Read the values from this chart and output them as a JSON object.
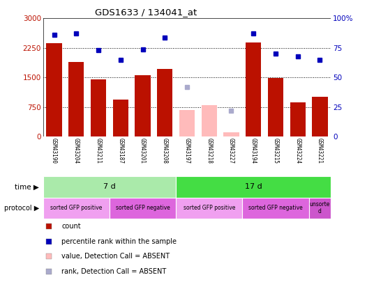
{
  "title": "GDS1633 / 134041_at",
  "samples": [
    "GSM43190",
    "GSM43204",
    "GSM43211",
    "GSM43187",
    "GSM43201",
    "GSM43208",
    "GSM43197",
    "GSM43218",
    "GSM43227",
    "GSM43194",
    "GSM43215",
    "GSM43224",
    "GSM43221"
  ],
  "counts": [
    2370,
    1900,
    1450,
    950,
    1560,
    1720,
    null,
    null,
    null,
    2380,
    1490,
    870,
    1020
  ],
  "counts_absent": [
    null,
    null,
    null,
    null,
    null,
    null,
    670,
    800,
    120,
    null,
    null,
    null,
    null
  ],
  "percentile_ranks": [
    86,
    87,
    73,
    65,
    74,
    84,
    null,
    null,
    null,
    87,
    70,
    68,
    65
  ],
  "percentile_ranks_absent": [
    null,
    null,
    null,
    null,
    null,
    null,
    42,
    null,
    22,
    null,
    null,
    null,
    null
  ],
  "ylim_left": [
    0,
    3000
  ],
  "ylim_right": [
    0,
    100
  ],
  "yticks_left": [
    0,
    750,
    1500,
    2250,
    3000
  ],
  "yticks_right": [
    0,
    25,
    50,
    75,
    100
  ],
  "ytick_labels_left": [
    "0",
    "750",
    "1500",
    "2250",
    "3000"
  ],
  "ytick_labels_right": [
    "0",
    "25",
    "50",
    "75",
    "100%"
  ],
  "time_groups": [
    {
      "label": "7 d",
      "start": 0,
      "end": 6,
      "color": "#aaeaaa"
    },
    {
      "label": "17 d",
      "start": 6,
      "end": 13,
      "color": "#44dd44"
    }
  ],
  "protocol_groups": [
    {
      "label": "sorted GFP positive",
      "start": 0,
      "end": 3,
      "color": "#f0a0f0"
    },
    {
      "label": "sorted GFP negative",
      "start": 3,
      "end": 6,
      "color": "#dd66dd"
    },
    {
      "label": "sorted GFP positive",
      "start": 6,
      "end": 9,
      "color": "#f0a0f0"
    },
    {
      "label": "sorted GFP negative",
      "start": 9,
      "end": 12,
      "color": "#dd66dd"
    },
    {
      "label": "unsorte\nd",
      "start": 12,
      "end": 13,
      "color": "#cc55cc"
    }
  ],
  "bar_color": "#bb1100",
  "bar_absent_color": "#ffbbbb",
  "dot_color": "#0000bb",
  "dot_absent_color": "#aaaacc",
  "background_color": "#ffffff",
  "plot_bg_color": "#ffffff",
  "xticklabel_bg": "#cccccc",
  "legend_items": [
    {
      "label": "count",
      "color": "#bb1100"
    },
    {
      "label": "percentile rank within the sample",
      "color": "#0000bb"
    },
    {
      "label": "value, Detection Call = ABSENT",
      "color": "#ffbbbb"
    },
    {
      "label": "rank, Detection Call = ABSENT",
      "color": "#aaaacc"
    }
  ]
}
